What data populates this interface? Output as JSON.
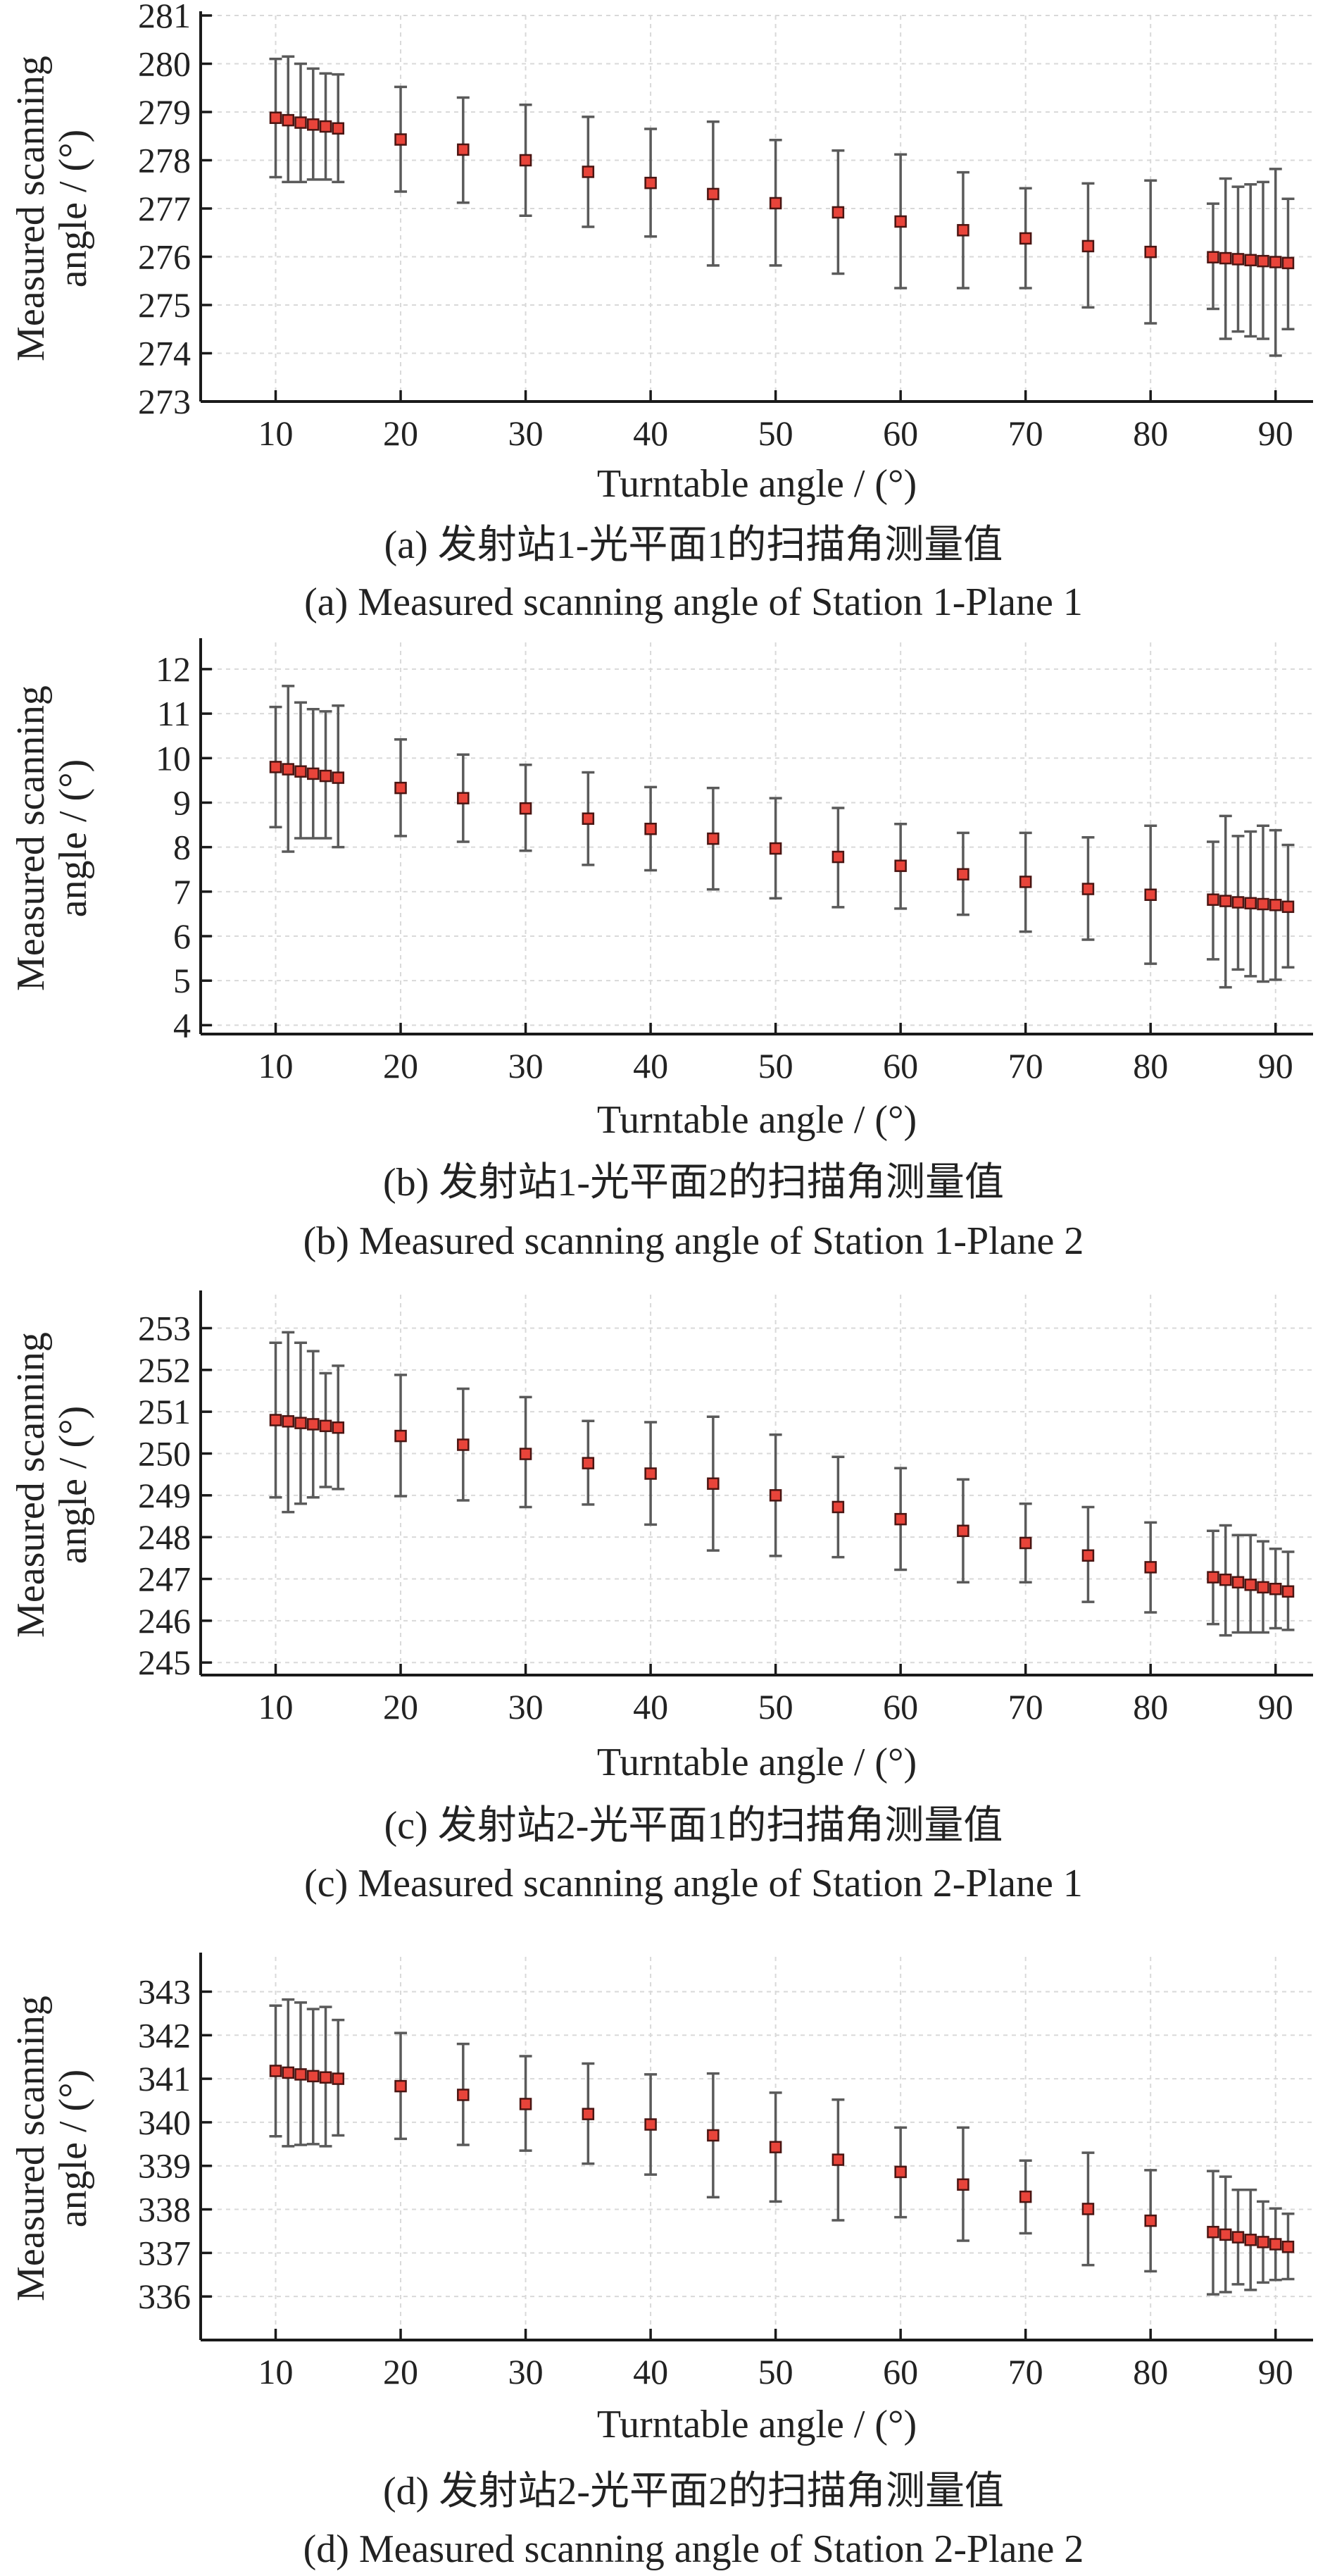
{
  "colors": {
    "marker_fill": "#e8443a",
    "marker_edge": "#4a1512",
    "error_bar": "#5a5a5a",
    "axis": "#1a1a1a"
  },
  "chart_data": [
    {
      "id": "a",
      "type": "scatter",
      "xlabel": "Turntable angle / (°)",
      "ylabel_lines": [
        "Measured scanning",
        "angle / (°)"
      ],
      "caption_cn": "(a) 发射站1-光平面1的扫描角测量值",
      "caption_en": "(a) Measured scanning angle of Station 1-Plane 1",
      "xlim": [
        4,
        93
      ],
      "ylim": [
        273,
        281
      ],
      "xticks": [
        10,
        20,
        30,
        40,
        50,
        60,
        70,
        80,
        90
      ],
      "yticks": [
        273,
        274,
        275,
        276,
        277,
        278,
        279,
        280,
        281
      ],
      "grid": true,
      "points": [
        {
          "x": 10,
          "y": 278.88,
          "lo": 277.65,
          "hi": 280.1
        },
        {
          "x": 11,
          "y": 278.83,
          "lo": 277.55,
          "hi": 280.15
        },
        {
          "x": 12,
          "y": 278.78,
          "lo": 277.55,
          "hi": 280.0
        },
        {
          "x": 13,
          "y": 278.74,
          "lo": 277.6,
          "hi": 279.9
        },
        {
          "x": 14,
          "y": 278.7,
          "lo": 277.6,
          "hi": 279.8
        },
        {
          "x": 15,
          "y": 278.66,
          "lo": 277.55,
          "hi": 279.78
        },
        {
          "x": 20,
          "y": 278.43,
          "lo": 277.35,
          "hi": 279.52
        },
        {
          "x": 25,
          "y": 278.22,
          "lo": 277.12,
          "hi": 279.3
        },
        {
          "x": 30,
          "y": 278.0,
          "lo": 276.85,
          "hi": 279.15
        },
        {
          "x": 35,
          "y": 277.76,
          "lo": 276.62,
          "hi": 278.9
        },
        {
          "x": 40,
          "y": 277.53,
          "lo": 276.42,
          "hi": 278.65
        },
        {
          "x": 45,
          "y": 277.3,
          "lo": 275.82,
          "hi": 278.8
        },
        {
          "x": 50,
          "y": 277.11,
          "lo": 275.82,
          "hi": 278.42
        },
        {
          "x": 55,
          "y": 276.92,
          "lo": 275.65,
          "hi": 278.2
        },
        {
          "x": 60,
          "y": 276.73,
          "lo": 275.35,
          "hi": 278.12
        },
        {
          "x": 65,
          "y": 276.55,
          "lo": 275.35,
          "hi": 277.75
        },
        {
          "x": 70,
          "y": 276.38,
          "lo": 275.35,
          "hi": 277.42
        },
        {
          "x": 75,
          "y": 276.22,
          "lo": 274.95,
          "hi": 277.52
        },
        {
          "x": 80,
          "y": 276.1,
          "lo": 274.62,
          "hi": 277.58
        },
        {
          "x": 85,
          "y": 275.99,
          "lo": 274.92,
          "hi": 277.1
        },
        {
          "x": 86,
          "y": 275.97,
          "lo": 274.3,
          "hi": 277.62
        },
        {
          "x": 87,
          "y": 275.95,
          "lo": 274.45,
          "hi": 277.45
        },
        {
          "x": 88,
          "y": 275.93,
          "lo": 274.35,
          "hi": 277.5
        },
        {
          "x": 89,
          "y": 275.91,
          "lo": 274.3,
          "hi": 277.55
        },
        {
          "x": 90,
          "y": 275.89,
          "lo": 273.95,
          "hi": 277.82
        },
        {
          "x": 91,
          "y": 275.87,
          "lo": 274.5,
          "hi": 277.2
        }
      ]
    },
    {
      "id": "b",
      "type": "scatter",
      "xlabel": "Turntable angle / (°)",
      "ylabel_lines": [
        "Measured scanning",
        "angle / (°)"
      ],
      "caption_cn": "(b) 发射站1-光平面2的扫描角测量值",
      "caption_en": "(b) Measured scanning angle of Station 1-Plane 2",
      "xlim": [
        4,
        93
      ],
      "ylim": [
        3.8,
        12.6
      ],
      "xticks": [
        10,
        20,
        30,
        40,
        50,
        60,
        70,
        80,
        90
      ],
      "yticks": [
        4,
        5,
        6,
        7,
        8,
        9,
        10,
        11,
        12
      ],
      "grid": true,
      "points": [
        {
          "x": 10,
          "y": 9.8,
          "lo": 8.45,
          "hi": 11.15
        },
        {
          "x": 11,
          "y": 9.75,
          "lo": 7.9,
          "hi": 11.62
        },
        {
          "x": 12,
          "y": 9.7,
          "lo": 8.2,
          "hi": 11.25
        },
        {
          "x": 13,
          "y": 9.65,
          "lo": 8.2,
          "hi": 11.1
        },
        {
          "x": 14,
          "y": 9.6,
          "lo": 8.2,
          "hi": 11.05
        },
        {
          "x": 15,
          "y": 9.56,
          "lo": 8.0,
          "hi": 11.18
        },
        {
          "x": 20,
          "y": 9.33,
          "lo": 8.25,
          "hi": 10.42
        },
        {
          "x": 25,
          "y": 9.1,
          "lo": 8.12,
          "hi": 10.08
        },
        {
          "x": 30,
          "y": 8.87,
          "lo": 7.92,
          "hi": 9.85
        },
        {
          "x": 35,
          "y": 8.64,
          "lo": 7.6,
          "hi": 9.68
        },
        {
          "x": 40,
          "y": 8.41,
          "lo": 7.48,
          "hi": 9.35
        },
        {
          "x": 45,
          "y": 8.19,
          "lo": 7.05,
          "hi": 9.33
        },
        {
          "x": 50,
          "y": 7.97,
          "lo": 6.85,
          "hi": 9.1
        },
        {
          "x": 55,
          "y": 7.78,
          "lo": 6.65,
          "hi": 8.88
        },
        {
          "x": 60,
          "y": 7.58,
          "lo": 6.62,
          "hi": 8.52
        },
        {
          "x": 65,
          "y": 7.39,
          "lo": 6.48,
          "hi": 8.32
        },
        {
          "x": 70,
          "y": 7.22,
          "lo": 6.1,
          "hi": 8.32
        },
        {
          "x": 75,
          "y": 7.06,
          "lo": 5.92,
          "hi": 8.22
        },
        {
          "x": 80,
          "y": 6.93,
          "lo": 5.38,
          "hi": 8.48
        },
        {
          "x": 85,
          "y": 6.82,
          "lo": 5.48,
          "hi": 8.12
        },
        {
          "x": 86,
          "y": 6.79,
          "lo": 4.85,
          "hi": 8.7
        },
        {
          "x": 87,
          "y": 6.76,
          "lo": 5.25,
          "hi": 8.25
        },
        {
          "x": 88,
          "y": 6.74,
          "lo": 5.1,
          "hi": 8.35
        },
        {
          "x": 89,
          "y": 6.72,
          "lo": 4.98,
          "hi": 8.48
        },
        {
          "x": 90,
          "y": 6.7,
          "lo": 5.02,
          "hi": 8.38
        },
        {
          "x": 91,
          "y": 6.66,
          "lo": 5.3,
          "hi": 8.05
        }
      ]
    },
    {
      "id": "c",
      "type": "scatter",
      "xlabel": "Turntable angle / (°)",
      "ylabel_lines": [
        "Measured scanning",
        "angle / (°)"
      ],
      "caption_cn": "(c) 发射站2-光平面1的扫描角测量值",
      "caption_en": "(c) Measured scanning angle of Station 2-Plane 1",
      "xlim": [
        4,
        93
      ],
      "ylim": [
        244.7,
        253.8
      ],
      "xticks": [
        10,
        20,
        30,
        40,
        50,
        60,
        70,
        80,
        90
      ],
      "yticks": [
        245,
        246,
        247,
        248,
        249,
        250,
        251,
        252,
        253
      ],
      "grid": true,
      "points": [
        {
          "x": 10,
          "y": 250.8,
          "lo": 248.95,
          "hi": 252.65
        },
        {
          "x": 11,
          "y": 250.77,
          "lo": 248.6,
          "hi": 252.9
        },
        {
          "x": 12,
          "y": 250.73,
          "lo": 248.8,
          "hi": 252.65
        },
        {
          "x": 13,
          "y": 250.7,
          "lo": 248.95,
          "hi": 252.45
        },
        {
          "x": 14,
          "y": 250.66,
          "lo": 249.2,
          "hi": 251.92
        },
        {
          "x": 15,
          "y": 250.62,
          "lo": 249.15,
          "hi": 252.1
        },
        {
          "x": 20,
          "y": 250.42,
          "lo": 248.98,
          "hi": 251.88
        },
        {
          "x": 25,
          "y": 250.21,
          "lo": 248.88,
          "hi": 251.55
        },
        {
          "x": 30,
          "y": 249.99,
          "lo": 248.72,
          "hi": 251.35
        },
        {
          "x": 35,
          "y": 249.77,
          "lo": 248.78,
          "hi": 250.78
        },
        {
          "x": 40,
          "y": 249.52,
          "lo": 248.3,
          "hi": 250.75
        },
        {
          "x": 45,
          "y": 249.28,
          "lo": 247.68,
          "hi": 250.88
        },
        {
          "x": 50,
          "y": 249.0,
          "lo": 247.55,
          "hi": 250.45
        },
        {
          "x": 55,
          "y": 248.72,
          "lo": 247.52,
          "hi": 249.92
        },
        {
          "x": 60,
          "y": 248.43,
          "lo": 247.22,
          "hi": 249.65
        },
        {
          "x": 65,
          "y": 248.15,
          "lo": 246.92,
          "hi": 249.38
        },
        {
          "x": 70,
          "y": 247.86,
          "lo": 246.92,
          "hi": 248.8
        },
        {
          "x": 75,
          "y": 247.56,
          "lo": 246.45,
          "hi": 248.72
        },
        {
          "x": 80,
          "y": 247.28,
          "lo": 246.2,
          "hi": 248.35
        },
        {
          "x": 85,
          "y": 247.04,
          "lo": 245.92,
          "hi": 248.15
        },
        {
          "x": 86,
          "y": 246.98,
          "lo": 245.65,
          "hi": 248.28
        },
        {
          "x": 87,
          "y": 246.92,
          "lo": 245.72,
          "hi": 248.05
        },
        {
          "x": 88,
          "y": 246.86,
          "lo": 245.72,
          "hi": 248.05
        },
        {
          "x": 89,
          "y": 246.8,
          "lo": 245.72,
          "hi": 247.9
        },
        {
          "x": 90,
          "y": 246.76,
          "lo": 245.82,
          "hi": 247.72
        },
        {
          "x": 91,
          "y": 246.7,
          "lo": 245.78,
          "hi": 247.65
        }
      ]
    },
    {
      "id": "d",
      "type": "scatter",
      "xlabel": "Turntable angle / (°)",
      "ylabel_lines": [
        "Measured scanning",
        "angle / (°)"
      ],
      "caption_cn": "(d) 发射站2-光平面2的扫描角测量值",
      "caption_en": "(d) Measured scanning angle of Station 2-Plane 2",
      "xlim": [
        4,
        93
      ],
      "ylim": [
        335.0,
        343.8
      ],
      "xticks": [
        10,
        20,
        30,
        40,
        50,
        60,
        70,
        80,
        90
      ],
      "yticks": [
        336,
        337,
        338,
        339,
        340,
        341,
        342,
        343
      ],
      "grid": true,
      "points": [
        {
          "x": 10,
          "y": 341.18,
          "lo": 339.68,
          "hi": 342.68
        },
        {
          "x": 11,
          "y": 341.14,
          "lo": 339.45,
          "hi": 342.82
        },
        {
          "x": 12,
          "y": 341.1,
          "lo": 339.48,
          "hi": 342.75
        },
        {
          "x": 13,
          "y": 341.06,
          "lo": 339.5,
          "hi": 342.6
        },
        {
          "x": 14,
          "y": 341.03,
          "lo": 339.45,
          "hi": 342.65
        },
        {
          "x": 15,
          "y": 341.0,
          "lo": 339.7,
          "hi": 342.35
        },
        {
          "x": 20,
          "y": 340.83,
          "lo": 339.62,
          "hi": 342.05
        },
        {
          "x": 25,
          "y": 340.63,
          "lo": 339.48,
          "hi": 341.8
        },
        {
          "x": 30,
          "y": 340.42,
          "lo": 339.35,
          "hi": 341.52
        },
        {
          "x": 35,
          "y": 340.19,
          "lo": 339.05,
          "hi": 341.35
        },
        {
          "x": 40,
          "y": 339.95,
          "lo": 338.8,
          "hi": 341.1
        },
        {
          "x": 45,
          "y": 339.7,
          "lo": 338.28,
          "hi": 341.12
        },
        {
          "x": 50,
          "y": 339.43,
          "lo": 338.18,
          "hi": 340.68
        },
        {
          "x": 55,
          "y": 339.14,
          "lo": 337.75,
          "hi": 340.52
        },
        {
          "x": 60,
          "y": 338.86,
          "lo": 337.82,
          "hi": 339.88
        },
        {
          "x": 65,
          "y": 338.57,
          "lo": 337.28,
          "hi": 339.88
        },
        {
          "x": 70,
          "y": 338.29,
          "lo": 337.45,
          "hi": 339.12
        },
        {
          "x": 75,
          "y": 338.01,
          "lo": 336.72,
          "hi": 339.3
        },
        {
          "x": 80,
          "y": 337.74,
          "lo": 336.58,
          "hi": 338.9
        },
        {
          "x": 85,
          "y": 337.48,
          "lo": 336.05,
          "hi": 338.88
        },
        {
          "x": 86,
          "y": 337.42,
          "lo": 336.1,
          "hi": 338.75
        },
        {
          "x": 87,
          "y": 337.36,
          "lo": 336.28,
          "hi": 338.45
        },
        {
          "x": 88,
          "y": 337.3,
          "lo": 336.15,
          "hi": 338.45
        },
        {
          "x": 89,
          "y": 337.25,
          "lo": 336.32,
          "hi": 338.18
        },
        {
          "x": 90,
          "y": 337.2,
          "lo": 336.38,
          "hi": 338.02
        },
        {
          "x": 91,
          "y": 337.14,
          "lo": 336.4,
          "hi": 337.9
        }
      ]
    }
  ]
}
